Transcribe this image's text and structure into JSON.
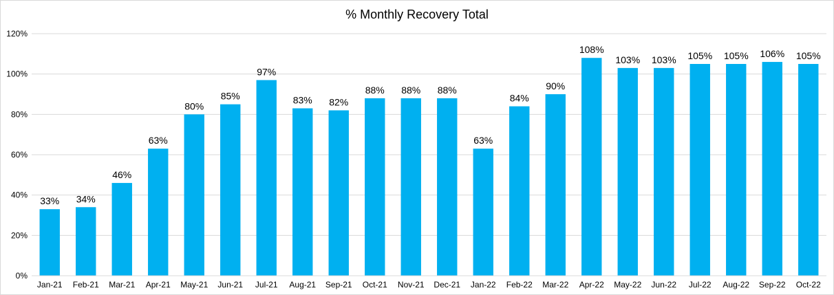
{
  "chart_data": {
    "type": "bar",
    "title": "% Monthly Recovery Total",
    "xlabel": "",
    "ylabel": "",
    "categories": [
      "Jan-21",
      "Feb-21",
      "Mar-21",
      "Apr-21",
      "May-21",
      "Jun-21",
      "Jul-21",
      "Aug-21",
      "Sep-21",
      "Oct-21",
      "Nov-21",
      "Dec-21",
      "Jan-22",
      "Feb-22",
      "Mar-22",
      "Apr-22",
      "May-22",
      "Jun-22",
      "Jul-22",
      "Aug-22",
      "Sep-22",
      "Oct-22"
    ],
    "values": [
      33,
      34,
      46,
      63,
      80,
      85,
      97,
      83,
      82,
      88,
      88,
      88,
      63,
      84,
      90,
      108,
      103,
      103,
      105,
      105,
      106,
      105
    ],
    "value_labels": [
      "33%",
      "34%",
      "46%",
      "63%",
      "80%",
      "85%",
      "97%",
      "83%",
      "82%",
      "88%",
      "88%",
      "88%",
      "63%",
      "84%",
      "90%",
      "108%",
      "103%",
      "103%",
      "105%",
      "105%",
      "106%",
      "105%"
    ],
    "ylim": [
      0,
      120
    ],
    "yticks": [
      0,
      20,
      40,
      60,
      80,
      100,
      120
    ],
    "ytick_labels": [
      "0%",
      "20%",
      "40%",
      "60%",
      "80%",
      "100%",
      "120%"
    ],
    "grid": true,
    "legend": "none",
    "colors": {
      "bar": "#00b0f0",
      "grid": "#d9d9d9",
      "text": "#000000"
    }
  }
}
